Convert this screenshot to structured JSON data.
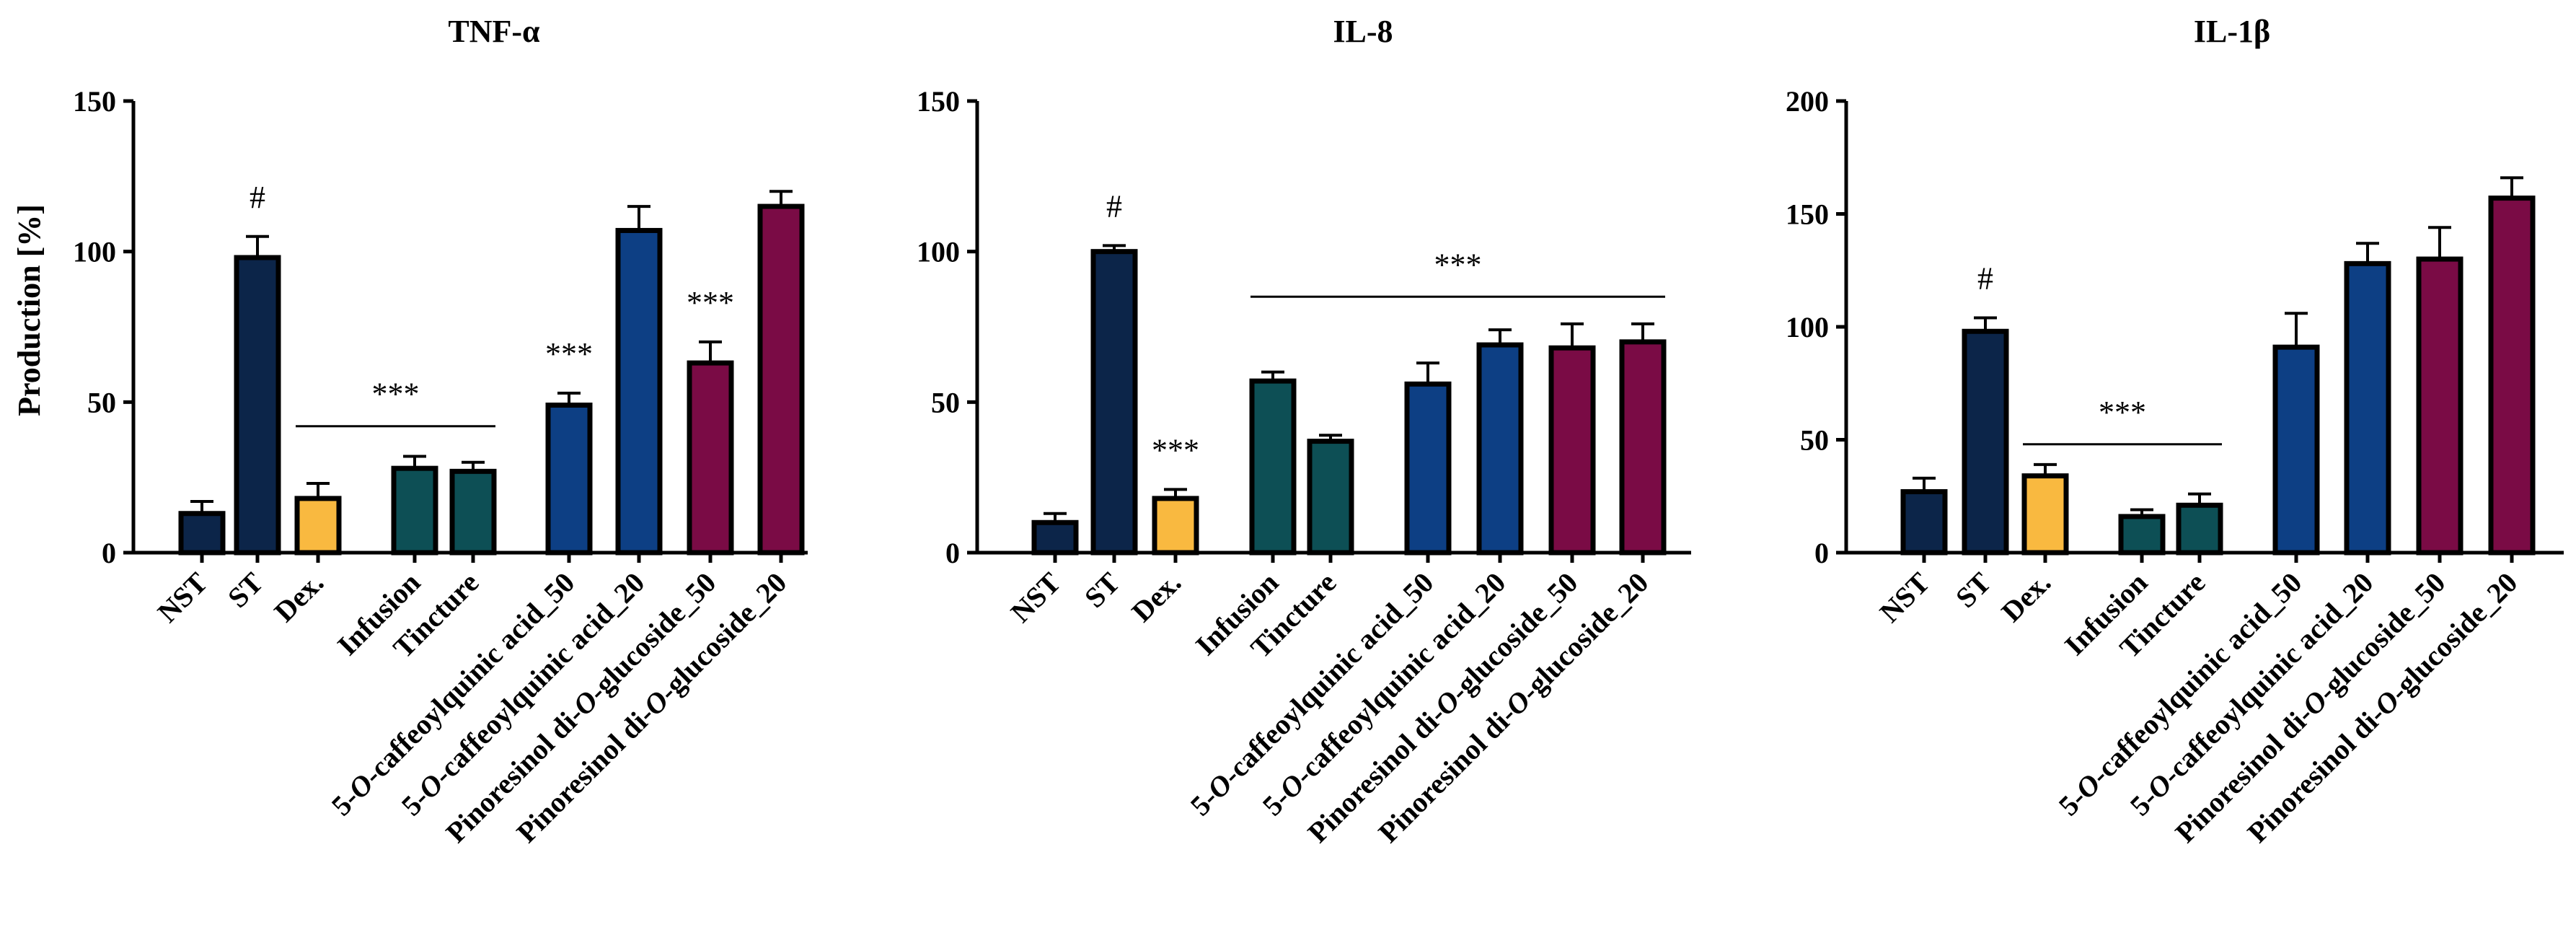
{
  "figure": {
    "ylabel": "Production [%]"
  },
  "colors": {
    "nst": "#0c2549",
    "st": "#0c2549",
    "dex": "#f9b940",
    "extract": "#0d4f55",
    "caffeoyl": "#0d3f84",
    "pinoresinol": "#7a0b45",
    "outline": "#000000"
  },
  "chart_data": [
    {
      "type": "bar",
      "title": "TNF-α",
      "ylabel": "Production [%]",
      "ylim": [
        0,
        150
      ],
      "yticks": [
        "0",
        "50",
        "100",
        "150"
      ],
      "categories": [
        {
          "pre": "NST",
          "em": "",
          "post": ""
        },
        {
          "pre": "ST",
          "em": "",
          "post": ""
        },
        {
          "pre": "Dex.",
          "em": "",
          "post": ""
        },
        {
          "pre": "Infusion",
          "em": "",
          "post": ""
        },
        {
          "pre": "Tincture",
          "em": "",
          "post": ""
        },
        {
          "pre": "5-",
          "em": "O",
          "post": "-caffeoylquinic acid_50"
        },
        {
          "pre": "5-",
          "em": "O",
          "post": "-caffeoylquinic acid_20"
        },
        {
          "pre": "Pinoresinol di-",
          "em": "O",
          "post": "-glucoside_50"
        },
        {
          "pre": "Pinoresinol di-",
          "em": "O",
          "post": "-glucoside_20"
        }
      ],
      "groups": [
        0,
        0,
        0,
        1,
        1,
        2,
        2,
        2,
        2
      ],
      "values": [
        13,
        98,
        18,
        28,
        27,
        49,
        107,
        63,
        115
      ],
      "errors": [
        4,
        7,
        5,
        4,
        3,
        4,
        8,
        7,
        5
      ],
      "color_keys": [
        "nst",
        "st",
        "dex",
        "extract",
        "extract",
        "caffeoyl",
        "caffeoyl",
        "pinoresinol",
        "pinoresinol"
      ],
      "annotations": [
        {
          "text": "#",
          "bar": 1
        },
        {
          "text": "***",
          "bar": 5
        },
        {
          "text": "***",
          "bar": 7
        }
      ],
      "brackets": [
        {
          "text": "***",
          "from_bar": 2,
          "to_bar": 4,
          "y": 42
        }
      ]
    },
    {
      "type": "bar",
      "title": "IL-8",
      "ylabel": "",
      "ylim": [
        0,
        150
      ],
      "yticks": [
        "0",
        "50",
        "100",
        "150"
      ],
      "categories": [
        {
          "pre": "NST",
          "em": "",
          "post": ""
        },
        {
          "pre": "ST",
          "em": "",
          "post": ""
        },
        {
          "pre": "Dex.",
          "em": "",
          "post": ""
        },
        {
          "pre": "Infusion",
          "em": "",
          "post": ""
        },
        {
          "pre": "Tincture",
          "em": "",
          "post": ""
        },
        {
          "pre": "5-",
          "em": "O",
          "post": "-caffeoylquinic acid_50"
        },
        {
          "pre": "5-",
          "em": "O",
          "post": "-caffeoylquinic acid_20"
        },
        {
          "pre": "Pinoresinol di-",
          "em": "O",
          "post": "-glucoside_50"
        },
        {
          "pre": "Pinoresinol di-",
          "em": "O",
          "post": "-glucoside_20"
        }
      ],
      "groups": [
        0,
        0,
        0,
        1,
        1,
        2,
        2,
        2,
        2
      ],
      "values": [
        10,
        100,
        18,
        57,
        37,
        56,
        69,
        68,
        70
      ],
      "errors": [
        3,
        2,
        3,
        3,
        2,
        7,
        5,
        8,
        6
      ],
      "color_keys": [
        "nst",
        "st",
        "dex",
        "extract",
        "extract",
        "caffeoyl",
        "caffeoyl",
        "pinoresinol",
        "pinoresinol"
      ],
      "annotations": [
        {
          "text": "#",
          "bar": 1
        },
        {
          "text": "***",
          "bar": 2
        }
      ],
      "brackets": [
        {
          "text": "***",
          "from_bar": 3,
          "to_bar": 8,
          "y": 85
        }
      ]
    },
    {
      "type": "bar",
      "title": "IL-1β",
      "ylabel": "",
      "ylim": [
        0,
        200
      ],
      "yticks": [
        "0",
        "50",
        "100",
        "150",
        "200"
      ],
      "categories": [
        {
          "pre": "NST",
          "em": "",
          "post": ""
        },
        {
          "pre": "ST",
          "em": "",
          "post": ""
        },
        {
          "pre": "Dex.",
          "em": "",
          "post": ""
        },
        {
          "pre": "Infusion",
          "em": "",
          "post": ""
        },
        {
          "pre": "Tincture",
          "em": "",
          "post": ""
        },
        {
          "pre": "5-",
          "em": "O",
          "post": "-caffeoylquinic acid_50"
        },
        {
          "pre": "5-",
          "em": "O",
          "post": "-caffeoylquinic acid_20"
        },
        {
          "pre": "Pinoresinol di-",
          "em": "O",
          "post": "-glucoside_50"
        },
        {
          "pre": "Pinoresinol di-",
          "em": "O",
          "post": "-glucoside_20"
        }
      ],
      "groups": [
        0,
        0,
        0,
        1,
        1,
        2,
        2,
        2,
        2
      ],
      "values": [
        27,
        98,
        34,
        16,
        21,
        91,
        128,
        130,
        157
      ],
      "errors": [
        6,
        6,
        5,
        3,
        5,
        15,
        9,
        14,
        9
      ],
      "color_keys": [
        "nst",
        "st",
        "dex",
        "extract",
        "extract",
        "caffeoyl",
        "caffeoyl",
        "pinoresinol",
        "pinoresinol"
      ],
      "annotations": [
        {
          "text": "#",
          "bar": 1
        }
      ],
      "brackets": [
        {
          "text": "***",
          "from_bar": 2,
          "to_bar": 4,
          "y": 48
        }
      ]
    }
  ]
}
